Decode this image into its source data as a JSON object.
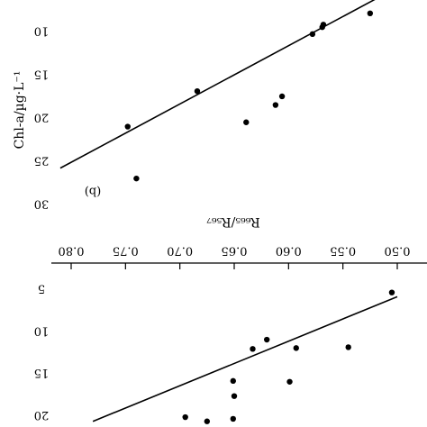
{
  "chart_data": [
    {
      "type": "scatter",
      "panel_label": "(b)",
      "ylabel": "Chl-a/µg·L⁻¹",
      "ylim": [
        0,
        30
      ],
      "xlim": [
        0.5,
        0.8
      ],
      "y_ticks": [
        10,
        15,
        20,
        25,
        30
      ],
      "y_tick_labels": [
        "10",
        "15",
        "20",
        "25",
        "30"
      ],
      "points": [
        {
          "x": 0.525,
          "y": 8.0
        },
        {
          "x": 0.568,
          "y": 9.3
        },
        {
          "x": 0.569,
          "y": 9.6
        },
        {
          "x": 0.578,
          "y": 10.4
        },
        {
          "x": 0.606,
          "y": 17.6
        },
        {
          "x": 0.612,
          "y": 18.6
        },
        {
          "x": 0.639,
          "y": 20.6
        },
        {
          "x": 0.684,
          "y": 17.0
        },
        {
          "x": 0.748,
          "y": 21.1
        },
        {
          "x": 0.74,
          "y": 27.1
        }
      ],
      "fit_line": {
        "x": [
          0.5,
          0.81
        ],
        "y": [
          5.0,
          25.9
        ]
      },
      "grid": false
    },
    {
      "type": "scatter",
      "xlabel": "R₆₆₅/R₅₆₇",
      "ylim": [
        0,
        21
      ],
      "xlim": [
        0.5,
        0.8
      ],
      "x_ticks": [
        0.5,
        0.55,
        0.6,
        0.65,
        0.7,
        0.75,
        0.8
      ],
      "x_tick_labels": [
        "0.50",
        "0.55",
        "0.60",
        "0.65",
        "0.70",
        "0.75",
        "0.80"
      ],
      "y_ticks": [
        5,
        10,
        15,
        20
      ],
      "y_tick_labels": [
        "5",
        "10",
        "15",
        "20"
      ],
      "points": [
        {
          "x": 0.505,
          "y": 5.5
        },
        {
          "x": 0.545,
          "y": 12.0
        },
        {
          "x": 0.593,
          "y": 12.1
        },
        {
          "x": 0.599,
          "y": 16.1
        },
        {
          "x": 0.62,
          "y": 11.1
        },
        {
          "x": 0.633,
          "y": 12.2
        },
        {
          "x": 0.651,
          "y": 16.0
        },
        {
          "x": 0.65,
          "y": 17.8
        },
        {
          "x": 0.651,
          "y": 20.5
        },
        {
          "x": 0.695,
          "y": 20.3
        },
        {
          "x": 0.675,
          "y": 20.8
        }
      ],
      "fit_line": {
        "x": [
          0.5,
          0.78
        ],
        "y": [
          6.0,
          20.8
        ]
      },
      "grid": false
    }
  ]
}
